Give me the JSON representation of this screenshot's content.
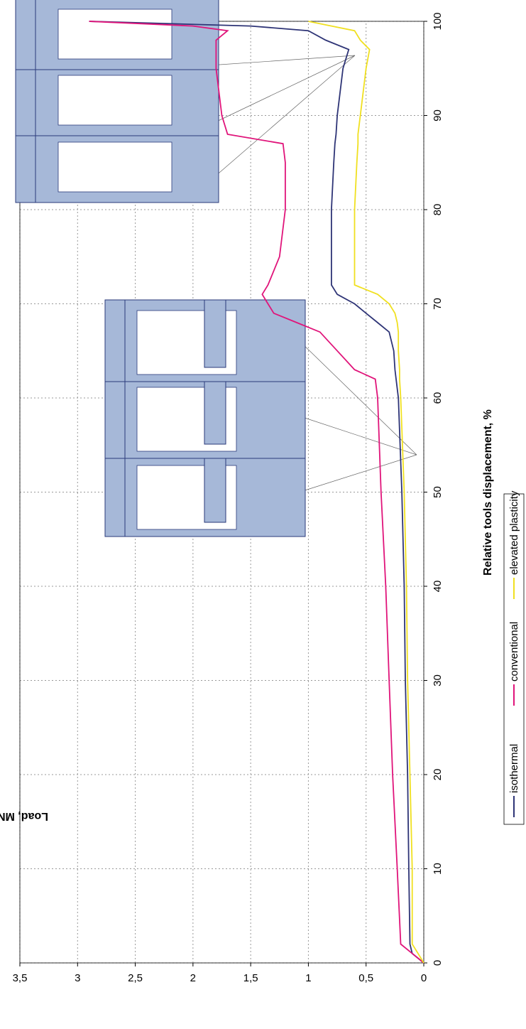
{
  "chart_data": {
    "type": "line",
    "xlabel": "Relative tools displacement, %",
    "ylabel": "Load, MN",
    "x": [
      0,
      1,
      2,
      10,
      20,
      30,
      40,
      50,
      60,
      62,
      63,
      65,
      67,
      68,
      69,
      70,
      71,
      72,
      75,
      80,
      85,
      87,
      88,
      90,
      95,
      97,
      98,
      99,
      99.5,
      100
    ],
    "series": [
      {
        "name": "isothermal",
        "color": "#2e3476",
        "values": [
          0,
          0.1,
          0.12,
          0.13,
          0.14,
          0.16,
          0.17,
          0.19,
          0.22,
          0.24,
          0.25,
          0.26,
          0.3,
          0.4,
          0.5,
          0.6,
          0.75,
          0.8,
          0.8,
          0.8,
          0.78,
          0.77,
          0.76,
          0.75,
          0.7,
          0.65,
          0.85,
          1.0,
          1.5,
          2.9
        ]
      },
      {
        "name": "conventional",
        "color": "#e0147a",
        "values": [
          0,
          0.1,
          0.2,
          0.23,
          0.27,
          0.3,
          0.33,
          0.37,
          0.4,
          0.42,
          0.6,
          0.75,
          0.9,
          1.1,
          1.3,
          1.35,
          1.4,
          1.35,
          1.25,
          1.2,
          1.2,
          1.22,
          1.7,
          1.75,
          1.8,
          1.8,
          1.8,
          1.7,
          2.0,
          2.9
        ]
      },
      {
        "name": "elevated plasticity",
        "color": "#f0e020",
        "values": [
          0,
          0.05,
          0.1,
          0.1,
          0.12,
          0.14,
          0.15,
          0.17,
          0.2,
          0.21,
          0.21,
          0.22,
          0.22,
          0.23,
          0.25,
          0.3,
          0.4,
          0.6,
          0.6,
          0.6,
          0.58,
          0.57,
          0.57,
          0.55,
          0.5,
          0.47,
          0.55,
          0.6,
          0.8,
          1.0
        ]
      }
    ],
    "xlim": [
      0,
      100
    ],
    "xticks": [
      0,
      10,
      20,
      30,
      40,
      50,
      60,
      70,
      80,
      90,
      100
    ],
    "ylim": [
      0,
      3.5
    ],
    "yticks": [
      0,
      {
        "value": 0.5,
        "label": "0,5"
      },
      1,
      {
        "value": 1.5,
        "label": "1,5"
      },
      2,
      {
        "value": 2.5,
        "label": "2,5"
      },
      3,
      {
        "value": 3.5,
        "label": "3,5"
      }
    ],
    "grid": true,
    "legend": "bottom"
  }
}
